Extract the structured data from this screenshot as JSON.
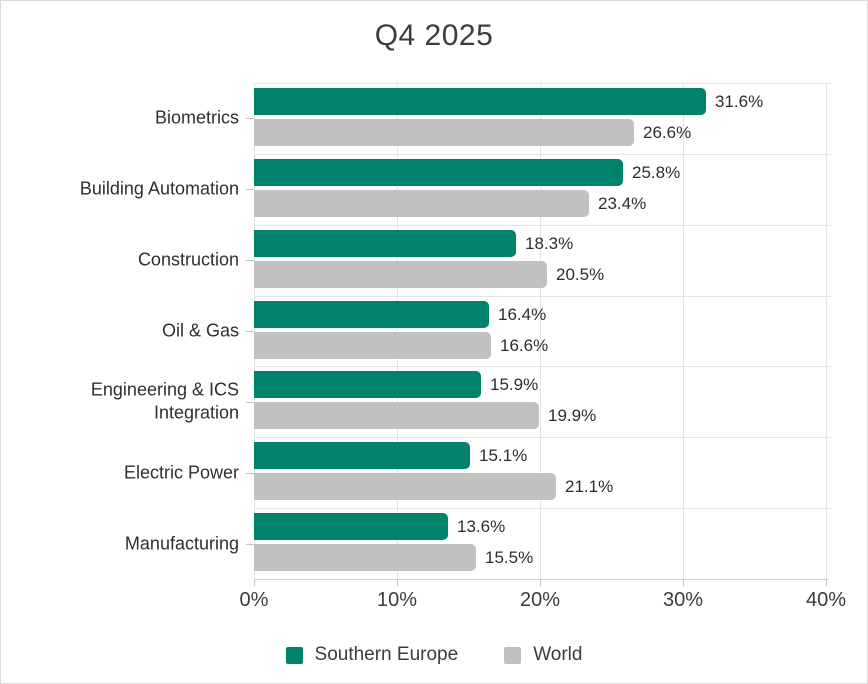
{
  "title": "Q4 2025",
  "chart_data": {
    "type": "bar",
    "orientation": "horizontal",
    "title": "Q4 2025",
    "categories": [
      "Biometrics",
      "Building Automation",
      "Construction",
      "Oil & Gas",
      "Engineering & ICS Integration",
      "Electric Power",
      "Manufacturing"
    ],
    "series": [
      {
        "name": "Southern Europe",
        "color": "#00826B",
        "values": [
          31.6,
          25.8,
          18.3,
          16.4,
          15.9,
          15.1,
          13.6
        ],
        "labels": [
          "31.6%",
          "25.8%",
          "18.3%",
          "16.4%",
          "15.9%",
          "15.1%",
          "13.6%"
        ]
      },
      {
        "name": "World",
        "color": "#C1C1C1",
        "values": [
          26.6,
          23.4,
          20.5,
          16.6,
          19.9,
          21.1,
          15.5
        ],
        "labels": [
          "26.6%",
          "23.4%",
          "20.5%",
          "16.6%",
          "19.9%",
          "21.1%",
          "15.5%"
        ]
      }
    ],
    "value_suffix": "%",
    "xlabel": "",
    "ylabel": "",
    "x_ticks": [
      "0%",
      "10%",
      "20%",
      "30%",
      "40%"
    ],
    "xlim": [
      0,
      40
    ],
    "grid": true,
    "legend_position": "bottom"
  },
  "colors": {
    "series_southern_europe": "#00826B",
    "series_world": "#C1C1C1",
    "gridline": "#e4e4e4",
    "axis_line": "#d0d0d0",
    "text": "#3c3c3c",
    "frame_border": "#d9d9d9",
    "background": "#ffffff"
  }
}
